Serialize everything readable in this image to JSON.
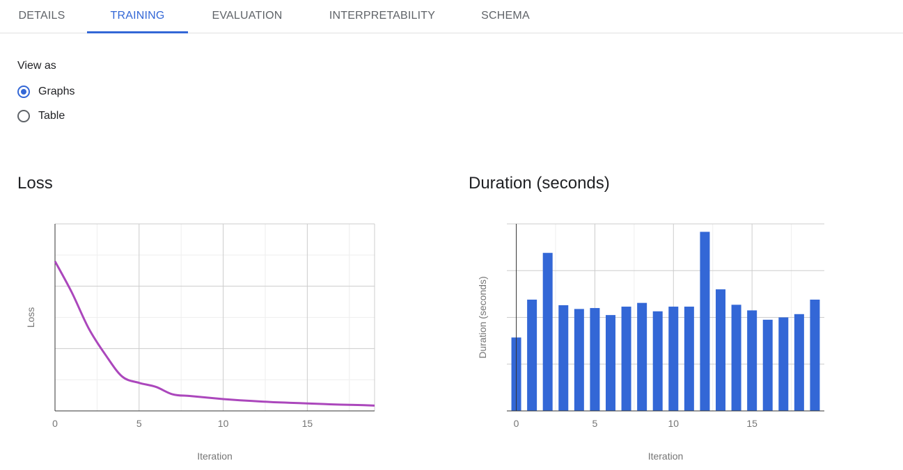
{
  "tabs": [
    {
      "label": "DETAILS",
      "active": false
    },
    {
      "label": "TRAINING",
      "active": true
    },
    {
      "label": "EVALUATION",
      "active": false
    },
    {
      "label": "INTERPRETABILITY",
      "active": false
    },
    {
      "label": "SCHEMA",
      "active": false
    }
  ],
  "view_as": {
    "label": "View as",
    "options": [
      {
        "label": "Graphs",
        "checked": true
      },
      {
        "label": "Table",
        "checked": false
      }
    ]
  },
  "colors": {
    "accent": "#3367d6",
    "loss_line": "#ab47bc",
    "bar": "#3367d6"
  },
  "chart_data": [
    {
      "type": "line",
      "title": "Loss",
      "xlabel": "Iteration",
      "ylabel": "Loss",
      "x_ticks": [
        0,
        5,
        10,
        15
      ],
      "xlim": [
        0,
        19
      ],
      "ylim": [
        0,
        6
      ],
      "grid": true,
      "series": [
        {
          "x": [
            0,
            1,
            2,
            3,
            4,
            5,
            6,
            7,
            8,
            9,
            10,
            11,
            12,
            13,
            14,
            15,
            16,
            17,
            18,
            19
          ],
          "values": [
            4.8,
            3.8,
            2.65,
            1.8,
            1.1,
            0.9,
            0.77,
            0.53,
            0.48,
            0.43,
            0.38,
            0.34,
            0.31,
            0.28,
            0.26,
            0.24,
            0.22,
            0.2,
            0.19,
            0.17
          ]
        }
      ]
    },
    {
      "type": "bar",
      "title": "Duration (seconds)",
      "xlabel": "Iteration",
      "ylabel": "Duration (seconds)",
      "x_ticks": [
        0,
        5,
        10,
        15
      ],
      "xlim": [
        -0.6,
        19.6
      ],
      "ylim": [
        0,
        4
      ],
      "grid": true,
      "categories": [
        0,
        1,
        2,
        3,
        4,
        5,
        6,
        7,
        8,
        9,
        10,
        11,
        12,
        13,
        14,
        15,
        16,
        17,
        18,
        19
      ],
      "values": [
        1.57,
        2.38,
        3.38,
        2.26,
        2.18,
        2.2,
        2.05,
        2.23,
        2.31,
        2.13,
        2.23,
        2.23,
        3.83,
        2.6,
        2.27,
        2.15,
        1.95,
        2.0,
        2.07,
        2.38
      ]
    }
  ]
}
